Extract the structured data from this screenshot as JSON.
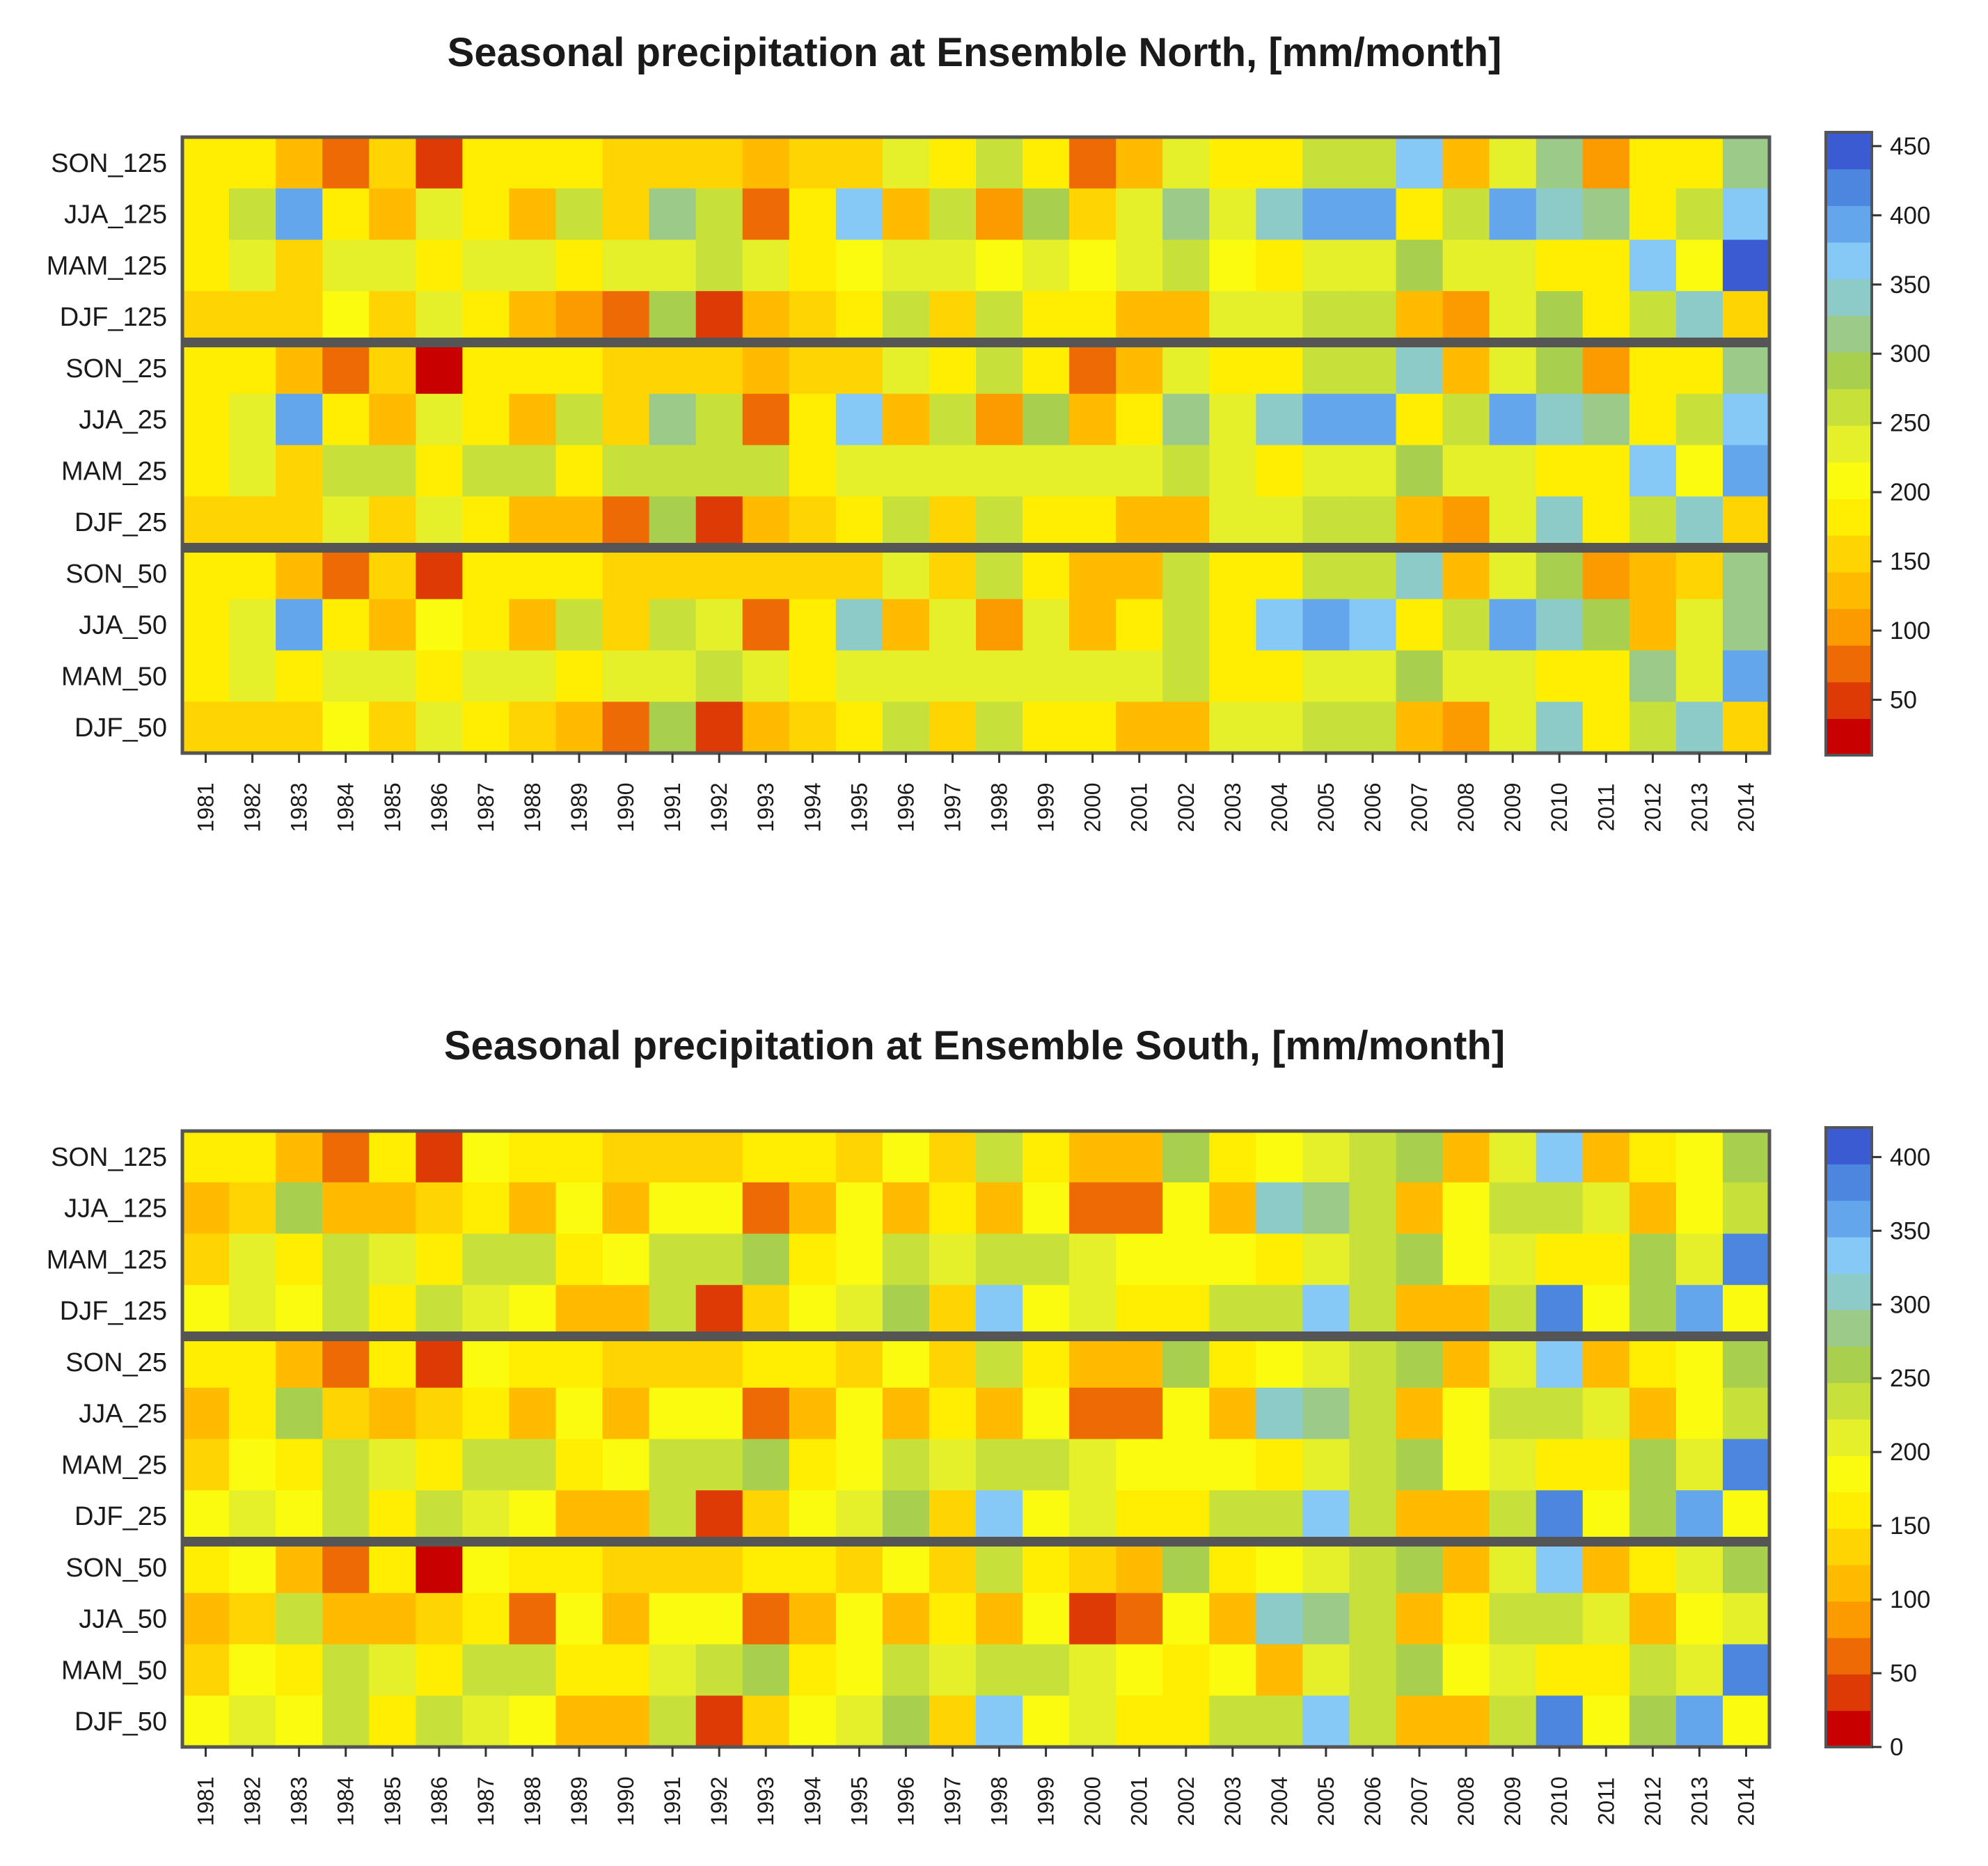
{
  "chart_data": [
    {
      "type": "heatmap",
      "title": "Seasonal precipitation at Ensemble North, [mm/month]",
      "xlabel": "",
      "ylabel": "",
      "units": "mm/month",
      "years": [
        "1981",
        "1982",
        "1983",
        "1984",
        "1985",
        "1986",
        "1987",
        "1988",
        "1989",
        "1990",
        "1991",
        "1992",
        "1993",
        "1994",
        "1995",
        "1996",
        "1997",
        "1998",
        "1999",
        "2000",
        "2001",
        "2002",
        "2003",
        "2004",
        "2005",
        "2006",
        "2007",
        "2008",
        "2009",
        "2010",
        "2011",
        "2012",
        "2013",
        "2014"
      ],
      "rows": [
        {
          "label": "SON_125",
          "values": [
            175,
            195,
            135,
            75,
            165,
            45,
            175,
            185,
            175,
            150,
            150,
            150,
            125,
            150,
            150,
            225,
            175,
            265,
            185,
            70,
            125,
            245,
            175,
            175,
            265,
            250,
            375,
            135,
            225,
            315,
            115,
            175,
            175,
            325
          ]
        },
        {
          "label": "JJA_125",
          "values": [
            175,
            255,
            395,
            195,
            135,
            240,
            185,
            140,
            260,
            165,
            305,
            270,
            75,
            195,
            370,
            140,
            260,
            115,
            275,
            145,
            225,
            305,
            235,
            335,
            395,
            395,
            195,
            265,
            405,
            335,
            315,
            175,
            265,
            370
          ]
        },
        {
          "label": "MAM_125",
          "values": [
            175,
            225,
            165,
            245,
            245,
            195,
            245,
            245,
            195,
            245,
            245,
            265,
            245,
            195,
            215,
            240,
            240,
            215,
            235,
            215,
            245,
            265,
            215,
            175,
            240,
            240,
            295,
            225,
            245,
            195,
            195,
            375,
            215,
            445
          ]
        },
        {
          "label": "DJF_125",
          "values": [
            165,
            165,
            165,
            220,
            165,
            240,
            195,
            140,
            115,
            75,
            275,
            40,
            125,
            145,
            195,
            265,
            150,
            270,
            175,
            195,
            140,
            140,
            225,
            245,
            265,
            250,
            135,
            115,
            245,
            295,
            195,
            260,
            330,
            150
          ]
        },
        {
          "label": "SON_25",
          "values": [
            175,
            195,
            135,
            75,
            165,
            20,
            175,
            185,
            175,
            150,
            150,
            150,
            125,
            150,
            150,
            225,
            175,
            265,
            185,
            70,
            125,
            245,
            175,
            175,
            265,
            250,
            335,
            135,
            225,
            295,
            115,
            175,
            175,
            325
          ]
        },
        {
          "label": "JJA_25",
          "values": [
            175,
            235,
            395,
            195,
            135,
            245,
            185,
            140,
            260,
            165,
            305,
            255,
            75,
            195,
            370,
            140,
            260,
            115,
            275,
            120,
            195,
            305,
            225,
            335,
            395,
            395,
            195,
            265,
            405,
            335,
            310,
            175,
            260,
            370
          ]
        },
        {
          "label": "MAM_25",
          "values": [
            175,
            235,
            165,
            255,
            255,
            195,
            255,
            255,
            195,
            255,
            255,
            265,
            255,
            195,
            230,
            240,
            240,
            235,
            240,
            225,
            245,
            265,
            225,
            175,
            245,
            245,
            295,
            225,
            245,
            195,
            195,
            375,
            215,
            405
          ]
        },
        {
          "label": "DJF_25",
          "values": [
            165,
            165,
            165,
            225,
            165,
            245,
            195,
            135,
            120,
            75,
            275,
            40,
            125,
            145,
            195,
            265,
            145,
            270,
            175,
            195,
            140,
            140,
            235,
            245,
            265,
            255,
            135,
            115,
            245,
            335,
            195,
            260,
            330,
            150
          ]
        },
        {
          "label": "SON_50",
          "values": [
            175,
            175,
            135,
            75,
            165,
            45,
            175,
            190,
            175,
            150,
            150,
            150,
            150,
            150,
            150,
            225,
            150,
            265,
            175,
            135,
            120,
            255,
            175,
            175,
            265,
            250,
            335,
            135,
            225,
            295,
            115,
            140,
            165,
            325
          ]
        },
        {
          "label": "JJA_50",
          "values": [
            175,
            225,
            395,
            195,
            135,
            220,
            185,
            140,
            265,
            165,
            265,
            245,
            75,
            175,
            330,
            120,
            245,
            115,
            245,
            120,
            195,
            265,
            195,
            370,
            395,
            375,
            175,
            265,
            385,
            335,
            295,
            140,
            245,
            325
          ]
        },
        {
          "label": "MAM_50",
          "values": [
            175,
            225,
            175,
            245,
            225,
            195,
            245,
            245,
            195,
            225,
            245,
            260,
            245,
            195,
            225,
            245,
            225,
            225,
            245,
            225,
            225,
            265,
            195,
            175,
            245,
            245,
            275,
            225,
            225,
            195,
            175,
            325,
            225,
            395
          ]
        },
        {
          "label": "DJF_50",
          "values": [
            165,
            165,
            165,
            220,
            165,
            240,
            195,
            165,
            120,
            75,
            275,
            40,
            125,
            145,
            195,
            265,
            145,
            270,
            175,
            195,
            140,
            140,
            235,
            245,
            265,
            255,
            135,
            115,
            245,
            335,
            175,
            260,
            330,
            150
          ]
        }
      ],
      "colorbar": {
        "min": 10,
        "max": 460,
        "ticks": [
          50,
          100,
          150,
          200,
          250,
          300,
          350,
          400,
          450
        ]
      }
    },
    {
      "type": "heatmap",
      "title": "Seasonal precipitation at Ensemble South, [mm/month]",
      "xlabel": "",
      "ylabel": "",
      "units": "mm/month",
      "years": [
        "1981",
        "1982",
        "1983",
        "1984",
        "1985",
        "1986",
        "1987",
        "1988",
        "1989",
        "1990",
        "1991",
        "1992",
        "1993",
        "1994",
        "1995",
        "1996",
        "1997",
        "1998",
        "1999",
        "2000",
        "2001",
        "2002",
        "2003",
        "2004",
        "2005",
        "2006",
        "2007",
        "2008",
        "2009",
        "2010",
        "2011",
        "2012",
        "2013",
        "2014"
      ],
      "rows": [
        {
          "label": "SON_125",
          "values": [
            150,
            165,
            115,
            65,
            150,
            45,
            175,
            160,
            160,
            135,
            135,
            135,
            150,
            150,
            125,
            175,
            125,
            240,
            160,
            115,
            115,
            265,
            150,
            175,
            220,
            240,
            265,
            115,
            215,
            330,
            115,
            160,
            175,
            260
          ]
        },
        {
          "label": "JJA_125",
          "values": [
            115,
            125,
            265,
            115,
            110,
            125,
            150,
            110,
            175,
            115,
            175,
            175,
            65,
            110,
            175,
            110,
            150,
            110,
            175,
            65,
            65,
            175,
            110,
            300,
            280,
            240,
            110,
            175,
            240,
            240,
            220,
            110,
            175,
            240
          ]
        },
        {
          "label": "MAM_125",
          "values": [
            125,
            210,
            150,
            245,
            210,
            150,
            230,
            230,
            150,
            175,
            230,
            230,
            250,
            150,
            175,
            230,
            210,
            230,
            230,
            215,
            180,
            180,
            180,
            150,
            210,
            240,
            265,
            180,
            200,
            150,
            150,
            260,
            210,
            375
          ]
        },
        {
          "label": "DJF_125",
          "values": [
            180,
            210,
            180,
            230,
            150,
            240,
            210,
            175,
            115,
            115,
            240,
            45,
            130,
            175,
            200,
            265,
            125,
            335,
            175,
            210,
            150,
            150,
            240,
            240,
            330,
            240,
            115,
            115,
            230,
            380,
            175,
            260,
            370,
            175
          ]
        },
        {
          "label": "SON_25",
          "values": [
            150,
            165,
            115,
            65,
            150,
            45,
            175,
            160,
            160,
            135,
            135,
            135,
            150,
            150,
            125,
            175,
            125,
            240,
            160,
            115,
            115,
            265,
            150,
            175,
            220,
            240,
            265,
            115,
            215,
            330,
            115,
            160,
            175,
            260
          ]
        },
        {
          "label": "JJA_25",
          "values": [
            115,
            150,
            265,
            125,
            110,
            125,
            150,
            110,
            175,
            115,
            175,
            175,
            65,
            110,
            175,
            110,
            150,
            110,
            175,
            65,
            65,
            175,
            110,
            300,
            280,
            240,
            110,
            175,
            240,
            240,
            220,
            110,
            175,
            240
          ]
        },
        {
          "label": "MAM_25",
          "values": [
            125,
            175,
            150,
            245,
            210,
            150,
            230,
            230,
            150,
            175,
            230,
            230,
            250,
            150,
            175,
            230,
            210,
            230,
            230,
            215,
            180,
            180,
            180,
            150,
            210,
            240,
            265,
            180,
            200,
            150,
            150,
            260,
            210,
            375
          ]
        },
        {
          "label": "DJF_25",
          "values": [
            180,
            210,
            180,
            230,
            150,
            240,
            210,
            175,
            115,
            115,
            240,
            45,
            130,
            175,
            200,
            265,
            125,
            335,
            175,
            210,
            150,
            150,
            240,
            240,
            330,
            240,
            115,
            115,
            230,
            380,
            175,
            260,
            370,
            175
          ]
        },
        {
          "label": "SON_50",
          "values": [
            150,
            175,
            115,
            65,
            150,
            15,
            175,
            160,
            160,
            135,
            135,
            135,
            150,
            150,
            125,
            175,
            125,
            240,
            150,
            125,
            115,
            265,
            150,
            175,
            220,
            240,
            265,
            115,
            215,
            330,
            115,
            150,
            200,
            260
          ]
        },
        {
          "label": "JJA_50",
          "values": [
            115,
            125,
            245,
            110,
            110,
            125,
            150,
            65,
            175,
            115,
            175,
            175,
            65,
            110,
            175,
            110,
            150,
            110,
            175,
            45,
            65,
            175,
            110,
            300,
            280,
            240,
            110,
            150,
            240,
            240,
            220,
            110,
            175,
            220
          ]
        },
        {
          "label": "MAM_50",
          "values": [
            125,
            175,
            150,
            245,
            210,
            150,
            230,
            230,
            150,
            150,
            210,
            230,
            250,
            150,
            175,
            230,
            210,
            230,
            230,
            215,
            180,
            150,
            175,
            120,
            210,
            240,
            265,
            180,
            200,
            150,
            150,
            240,
            210,
            395
          ]
        },
        {
          "label": "DJF_50",
          "values": [
            180,
            210,
            180,
            230,
            150,
            240,
            210,
            175,
            115,
            115,
            240,
            45,
            130,
            175,
            200,
            265,
            125,
            335,
            175,
            210,
            150,
            150,
            240,
            240,
            330,
            240,
            115,
            115,
            230,
            380,
            175,
            260,
            370,
            175
          ]
        }
      ],
      "colorbar": {
        "min": 0,
        "max": 420,
        "ticks": [
          0,
          50,
          100,
          150,
          200,
          250,
          300,
          350,
          400
        ]
      }
    }
  ],
  "palette": [
    "#c80000",
    "#de3a06",
    "#ee6a04",
    "#fc9b00",
    "#ffbb00",
    "#ffd400",
    "#ffee00",
    "#fbfb10",
    "#e5ef2a",
    "#c8e03a",
    "#a9cf4f",
    "#9ccb89",
    "#8ccbc8",
    "#86c8f6",
    "#63a6ec",
    "#4d86df",
    "#3a5bd1"
  ],
  "separator_color": "#555555"
}
